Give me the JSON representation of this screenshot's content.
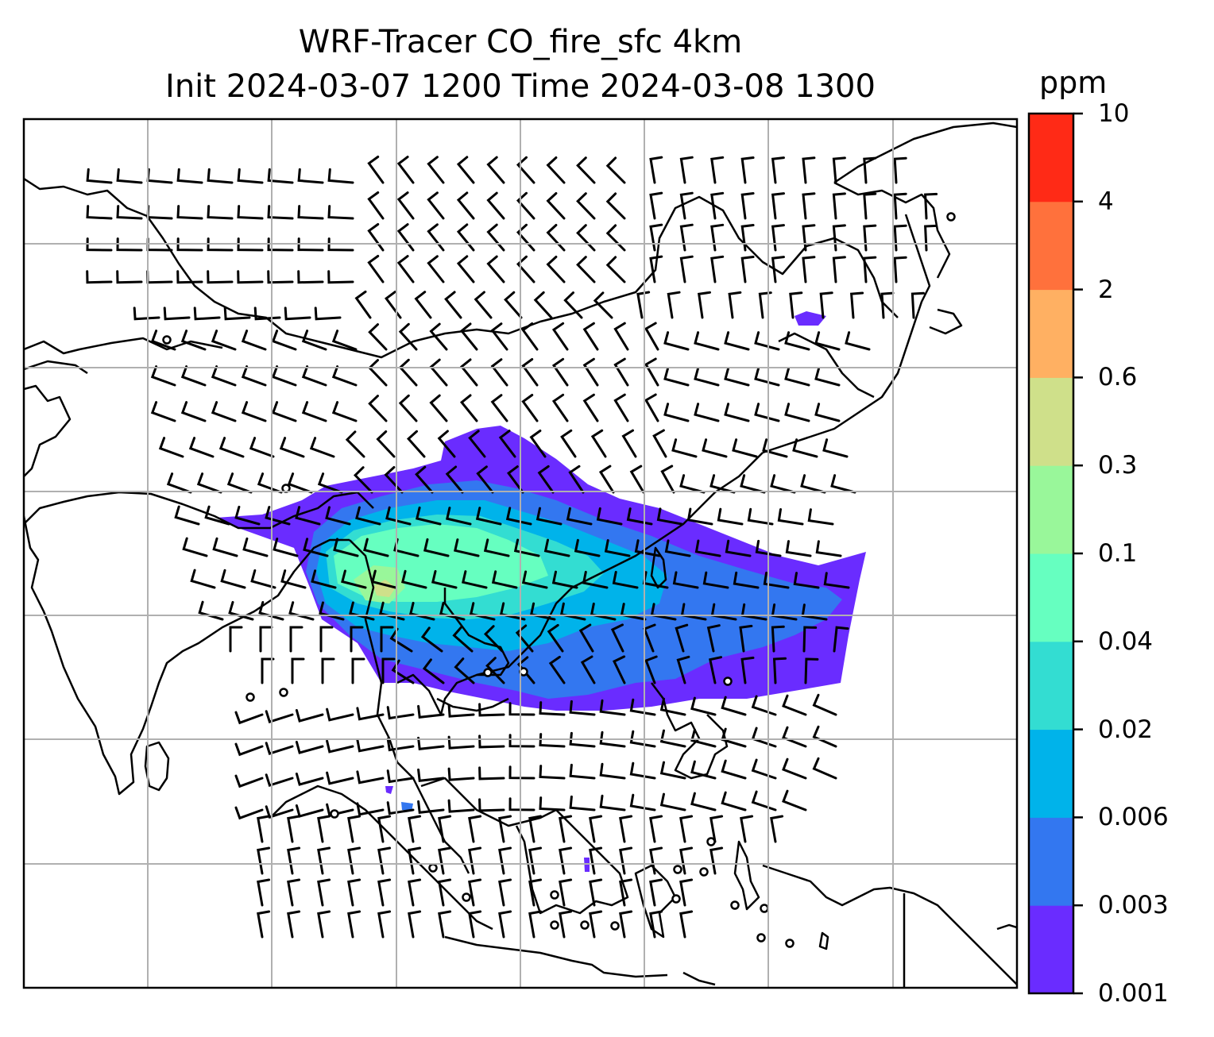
{
  "title": {
    "line1": "WRF-Tracer CO_fire_sfc 4km",
    "line2": "Init 2024-03-07 1200 Time 2024-03-08 1300"
  },
  "colorbar": {
    "unit": "ppm",
    "levels": [
      "0.001",
      "0.003",
      "0.006",
      "0.02",
      "0.04",
      "0.1",
      "0.3",
      "0.6",
      "2",
      "4",
      "10"
    ],
    "colors": [
      "#6a2cff",
      "#3377f0",
      "#00b3ea",
      "#33ddd2",
      "#66ffc0",
      "#99f79a",
      "#cfe08a",
      "#ffb062",
      "#ff713c",
      "#ff2a16"
    ]
  },
  "map": {
    "field": "CO_fire_sfc",
    "gridlines": true,
    "overlay": "wind barbs"
  }
}
